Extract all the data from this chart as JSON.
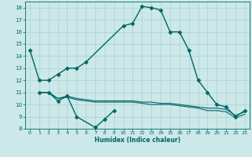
{
  "xlabel": "Humidex (Indice chaleur)",
  "ylabel": "",
  "xlim": [
    -0.5,
    23.5
  ],
  "ylim": [
    8,
    18.5
  ],
  "yticks": [
    8,
    9,
    10,
    11,
    12,
    13,
    14,
    15,
    16,
    17,
    18
  ],
  "xticks": [
    0,
    1,
    2,
    3,
    4,
    5,
    6,
    7,
    8,
    9,
    10,
    11,
    12,
    13,
    14,
    15,
    16,
    17,
    18,
    19,
    20,
    21,
    22,
    23
  ],
  "background_color": "#cce8e8",
  "grid_color": "#aad0d0",
  "line_color": "#006666",
  "lines": [
    {
      "x": [
        0,
        1,
        2,
        3,
        4,
        5,
        6,
        10,
        11,
        12,
        13,
        14,
        15,
        16,
        17,
        18,
        19,
        20,
        21,
        22,
        23
      ],
      "y": [
        14.5,
        12.0,
        12.0,
        12.5,
        13.0,
        13.0,
        13.5,
        16.5,
        16.7,
        18.1,
        18.0,
        17.8,
        16.0,
        16.0,
        14.5,
        12.0,
        11.0,
        10.0,
        9.8,
        9.0,
        9.5
      ],
      "marker": "D",
      "markersize": 2.5,
      "linewidth": 1.0
    },
    {
      "x": [
        1,
        2,
        3,
        4,
        5,
        7,
        8,
        9
      ],
      "y": [
        11.0,
        11.0,
        10.3,
        10.7,
        9.0,
        8.1,
        8.8,
        9.5
      ],
      "marker": "D",
      "markersize": 2.5,
      "linewidth": 1.0
    },
    {
      "x": [
        1,
        2,
        3,
        4,
        5,
        6,
        7,
        8,
        9,
        10,
        11,
        12,
        13,
        14,
        15,
        16,
        17,
        18,
        19,
        20,
        21,
        22,
        23
      ],
      "y": [
        11.0,
        11.0,
        10.5,
        10.7,
        10.5,
        10.4,
        10.3,
        10.3,
        10.3,
        10.3,
        10.3,
        10.2,
        10.2,
        10.1,
        10.1,
        10.0,
        9.9,
        9.8,
        9.7,
        9.7,
        9.6,
        9.1,
        9.4
      ],
      "marker": null,
      "markersize": 0,
      "linewidth": 0.8
    },
    {
      "x": [
        1,
        2,
        3,
        4,
        5,
        6,
        7,
        8,
        9,
        10,
        11,
        12,
        13,
        14,
        15,
        16,
        17,
        18,
        19,
        20,
        21,
        22,
        23
      ],
      "y": [
        11.0,
        11.0,
        10.5,
        10.6,
        10.4,
        10.3,
        10.2,
        10.2,
        10.2,
        10.2,
        10.2,
        10.1,
        10.0,
        10.0,
        10.0,
        9.9,
        9.8,
        9.7,
        9.5,
        9.5,
        9.4,
        8.9,
        9.2
      ],
      "marker": null,
      "markersize": 0,
      "linewidth": 0.8
    }
  ]
}
